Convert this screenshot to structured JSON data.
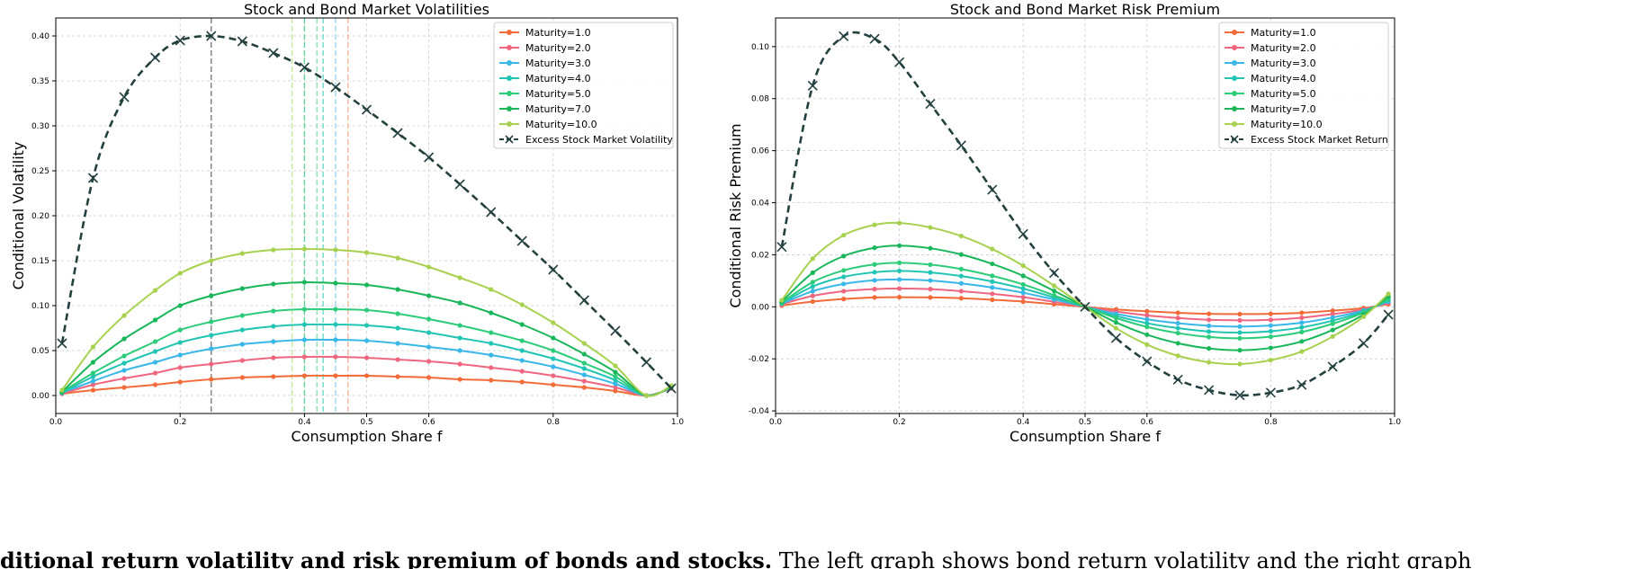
{
  "caption": {
    "bold": "ditional return volatility and risk premium of bonds and stocks.",
    "text": " The left graph shows bond return volatility and the right graph"
  },
  "chart_data": [
    {
      "type": "line",
      "title": "Stock and Bond Market Volatilities",
      "xlabel": "Consumption Share f",
      "ylabel": "Conditional Volatility",
      "xlim": [
        0,
        1
      ],
      "ylim": [
        -0.02,
        0.42
      ],
      "xticks": [
        0,
        0.2,
        0.4,
        0.5,
        0.6,
        0.8,
        1.0
      ],
      "xtick_labels": [
        "0.0",
        "0.2",
        "0.4",
        "0.5",
        "0.6",
        "0.8",
        "1.0"
      ],
      "yticks": [
        0,
        0.05,
        0.1,
        0.15,
        0.2,
        0.25,
        0.3,
        0.35,
        0.4
      ],
      "ytick_labels": [
        "0.00",
        "0.05",
        "0.10",
        "0.15",
        "0.20",
        "0.25",
        "0.30",
        "0.35",
        "0.40"
      ],
      "grid": true,
      "legend_position": "top-right",
      "x": [
        0.01,
        0.06,
        0.11,
        0.16,
        0.2,
        0.25,
        0.3,
        0.35,
        0.4,
        0.45,
        0.5,
        0.55,
        0.6,
        0.65,
        0.7,
        0.75,
        0.8,
        0.85,
        0.9,
        0.95,
        0.99
      ],
      "series": [
        {
          "name": "Maturity=1.0",
          "color": "#f26b38",
          "marker": "dot",
          "values": [
            0.002,
            0.006,
            0.009,
            0.012,
            0.015,
            0.018,
            0.02,
            0.021,
            0.022,
            0.022,
            0.022,
            0.021,
            0.02,
            0.018,
            0.017,
            0.015,
            0.012,
            0.009,
            0.005,
            0.0,
            0.008
          ]
        },
        {
          "name": "Maturity=2.0",
          "color": "#f0667f",
          "marker": "dot",
          "values": [
            0.002,
            0.012,
            0.019,
            0.025,
            0.031,
            0.035,
            0.039,
            0.042,
            0.043,
            0.043,
            0.042,
            0.04,
            0.038,
            0.035,
            0.031,
            0.027,
            0.022,
            0.016,
            0.009,
            0.0,
            0.008
          ]
        },
        {
          "name": "Maturity=3.0",
          "color": "#39b7e8",
          "marker": "dot",
          "values": [
            0.003,
            0.016,
            0.028,
            0.037,
            0.045,
            0.052,
            0.057,
            0.06,
            0.062,
            0.062,
            0.061,
            0.058,
            0.054,
            0.05,
            0.045,
            0.039,
            0.032,
            0.023,
            0.013,
            0.0,
            0.009
          ]
        },
        {
          "name": "Maturity=4.0",
          "color": "#22c4b4",
          "marker": "dot",
          "values": [
            0.003,
            0.021,
            0.036,
            0.049,
            0.059,
            0.067,
            0.073,
            0.077,
            0.079,
            0.079,
            0.078,
            0.075,
            0.07,
            0.064,
            0.058,
            0.05,
            0.041,
            0.03,
            0.017,
            0.0,
            0.009
          ]
        },
        {
          "name": "Maturity=5.0",
          "color": "#2dcc7a",
          "marker": "dot",
          "values": [
            0.004,
            0.025,
            0.044,
            0.06,
            0.073,
            0.082,
            0.089,
            0.094,
            0.096,
            0.096,
            0.095,
            0.091,
            0.085,
            0.078,
            0.07,
            0.061,
            0.05,
            0.036,
            0.021,
            0.0,
            0.01
          ]
        },
        {
          "name": "Maturity=7.0",
          "color": "#19b65a",
          "marker": "dot",
          "values": [
            0.004,
            0.037,
            0.063,
            0.084,
            0.1,
            0.111,
            0.119,
            0.124,
            0.126,
            0.125,
            0.123,
            0.118,
            0.111,
            0.103,
            0.092,
            0.079,
            0.064,
            0.046,
            0.026,
            0.0,
            0.01
          ]
        },
        {
          "name": "Maturity=10.0",
          "color": "#a7d14e",
          "marker": "dot",
          "values": [
            0.006,
            0.054,
            0.089,
            0.117,
            0.136,
            0.15,
            0.158,
            0.162,
            0.163,
            0.162,
            0.159,
            0.153,
            0.143,
            0.131,
            0.118,
            0.101,
            0.081,
            0.058,
            0.033,
            0.0,
            0.011
          ]
        },
        {
          "name": "Excess Stock Market Volatility",
          "color": "#24413f",
          "marker": "x",
          "dashed": true,
          "values": [
            0.058,
            0.242,
            0.332,
            0.376,
            0.395,
            0.4,
            0.394,
            0.381,
            0.365,
            0.343,
            0.318,
            0.292,
            0.265,
            0.235,
            0.204,
            0.172,
            0.14,
            0.106,
            0.072,
            0.037,
            0.008
          ]
        }
      ],
      "vlines": [
        {
          "x": 0.25,
          "color": "#7f7f7f"
        },
        {
          "x": 0.38,
          "color": "#c6e79e"
        },
        {
          "x": 0.4,
          "color": "#5fd59a"
        },
        {
          "x": 0.42,
          "color": "#8fe0b3"
        },
        {
          "x": 0.43,
          "color": "#6ad9cc"
        },
        {
          "x": 0.45,
          "color": "#9dd3ee"
        },
        {
          "x": 0.47,
          "color": "#f5b7a0"
        }
      ]
    },
    {
      "type": "line",
      "title": "Stock and Bond Market Risk Premium",
      "xlabel": "Consumption Share f",
      "ylabel": "Conditional Risk Premium",
      "xlim": [
        0,
        1
      ],
      "ylim": [
        -0.041,
        0.111
      ],
      "xticks": [
        0,
        0.2,
        0.4,
        0.5,
        0.6,
        0.8,
        1.0
      ],
      "xtick_labels": [
        "0.0",
        "0.2",
        "0.4",
        "0.5",
        "0.6",
        "0.8",
        "1.0"
      ],
      "yticks": [
        -0.04,
        -0.02,
        0,
        0.02,
        0.04,
        0.06,
        0.08,
        0.1
      ],
      "ytick_labels": [
        "-0.04",
        "-0.02",
        "0.00",
        "0.02",
        "0.04",
        "0.06",
        "0.08",
        "0.10"
      ],
      "grid": true,
      "legend_position": "top-right",
      "x": [
        0.01,
        0.06,
        0.11,
        0.16,
        0.2,
        0.25,
        0.3,
        0.35,
        0.4,
        0.45,
        0.5,
        0.55,
        0.6,
        0.65,
        0.7,
        0.75,
        0.8,
        0.85,
        0.9,
        0.95,
        0.99
      ],
      "series": [
        {
          "name": "Maturity=1.0",
          "color": "#f26b38",
          "marker": "dot",
          "values": [
            0.0005,
            0.002,
            0.003,
            0.0036,
            0.0037,
            0.0036,
            0.0033,
            0.0027,
            0.002,
            0.001,
            0.0,
            -0.001,
            -0.0017,
            -0.0023,
            -0.0027,
            -0.0028,
            -0.0027,
            -0.0023,
            -0.0015,
            -0.0005,
            0.001
          ]
        },
        {
          "name": "Maturity=2.0",
          "color": "#f0667f",
          "marker": "dot",
          "values": [
            0.001,
            0.0042,
            0.006,
            0.0068,
            0.007,
            0.0068,
            0.006,
            0.005,
            0.0037,
            0.0019,
            0.0,
            -0.0018,
            -0.0033,
            -0.0043,
            -0.005,
            -0.0052,
            -0.005,
            -0.0042,
            -0.0028,
            -0.001,
            0.0015
          ]
        },
        {
          "name": "Maturity=3.0",
          "color": "#39b7e8",
          "marker": "dot",
          "values": [
            0.0012,
            0.006,
            0.0088,
            0.0102,
            0.0105,
            0.0101,
            0.009,
            0.0074,
            0.0054,
            0.0028,
            0.0,
            -0.0027,
            -0.0048,
            -0.0063,
            -0.0073,
            -0.0076,
            -0.0072,
            -0.0061,
            -0.0041,
            -0.0014,
            0.002
          ]
        },
        {
          "name": "Maturity=4.0",
          "color": "#22c4b4",
          "marker": "dot",
          "values": [
            0.0014,
            0.0078,
            0.0115,
            0.0133,
            0.0138,
            0.0132,
            0.0118,
            0.0097,
            0.007,
            0.0036,
            0.0,
            -0.0035,
            -0.0063,
            -0.0082,
            -0.0095,
            -0.0099,
            -0.0094,
            -0.0079,
            -0.0053,
            -0.0018,
            0.0025
          ]
        },
        {
          "name": "Maturity=5.0",
          "color": "#2dcc7a",
          "marker": "dot",
          "values": [
            0.0016,
            0.0095,
            0.014,
            0.0163,
            0.0169,
            0.0162,
            0.0145,
            0.0119,
            0.0086,
            0.0044,
            0.0,
            -0.0043,
            -0.0077,
            -0.0101,
            -0.0116,
            -0.0121,
            -0.0115,
            -0.0097,
            -0.0065,
            -0.0022,
            0.003
          ]
        },
        {
          "name": "Maturity=7.0",
          "color": "#19b65a",
          "marker": "dot",
          "values": [
            0.002,
            0.0131,
            0.0195,
            0.0227,
            0.0235,
            0.0225,
            0.0201,
            0.0165,
            0.0119,
            0.0061,
            0.0,
            -0.006,
            -0.0107,
            -0.014,
            -0.016,
            -0.0167,
            -0.0158,
            -0.0133,
            -0.0089,
            -0.003,
            0.004
          ]
        },
        {
          "name": "Maturity=10.0",
          "color": "#a7d14e",
          "marker": "dot",
          "values": [
            0.0025,
            0.0185,
            0.0275,
            0.0315,
            0.0322,
            0.0305,
            0.0272,
            0.0222,
            0.0158,
            0.0081,
            0.0,
            -0.0082,
            -0.0145,
            -0.0188,
            -0.0213,
            -0.022,
            -0.0205,
            -0.0172,
            -0.0114,
            -0.0038,
            0.005
          ]
        },
        {
          "name": "Excess Stock Market Return",
          "color": "#24413f",
          "marker": "x",
          "dashed": true,
          "values": [
            0.023,
            0.085,
            0.104,
            0.103,
            0.094,
            0.078,
            0.062,
            0.045,
            0.028,
            0.013,
            0.0,
            -0.012,
            -0.021,
            -0.028,
            -0.032,
            -0.034,
            -0.033,
            -0.03,
            -0.023,
            -0.014,
            -0.003
          ]
        }
      ]
    }
  ]
}
